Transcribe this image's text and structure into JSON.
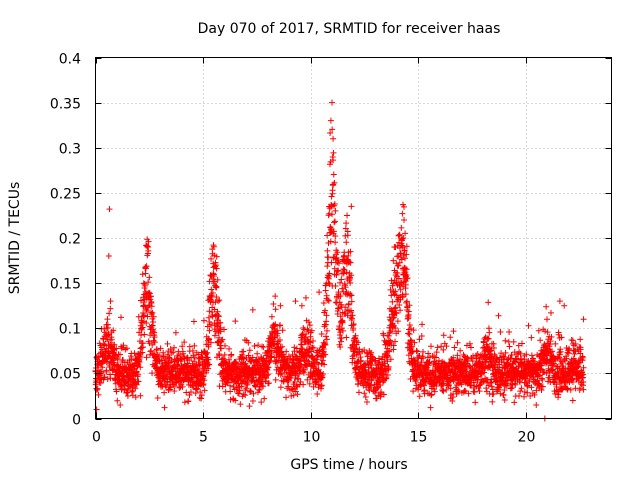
{
  "chart_data": {
    "type": "scatter",
    "title": "Day 070 of 2017, SRMTID for receiver haas",
    "xlabel": "GPS time / hours",
    "ylabel": "SRMTID / TECUs",
    "xlim": [
      0,
      24
    ],
    "ylim": [
      0,
      0.4
    ],
    "xticks": [
      0,
      5,
      10,
      15,
      20
    ],
    "xtick_labels": [
      "0",
      "5",
      "10",
      "15",
      "20"
    ],
    "yticks": [
      0,
      0.05,
      0.1,
      0.15,
      0.2,
      0.25,
      0.3,
      0.35,
      0.4
    ],
    "ytick_labels": [
      "0",
      "0.05",
      "0.1",
      "0.15",
      "0.2",
      "0.25",
      "0.3",
      "0.35",
      "0.4"
    ],
    "grid": true,
    "marker": "+",
    "series": [
      {
        "name": "SRMTID",
        "color": "#ff0000",
        "x_range": [
          0,
          22.7
        ],
        "n_points": 3600,
        "baseline_level": 0.05,
        "activity_episodes": [
          {
            "center_h": 0.6,
            "peak": 0.08
          },
          {
            "center_h": 2.4,
            "peak": 0.15
          },
          {
            "center_h": 5.5,
            "peak": 0.14
          },
          {
            "center_h": 8.3,
            "peak": 0.09
          },
          {
            "center_h": 9.8,
            "peak": 0.08
          },
          {
            "center_h": 11.0,
            "peak": 0.24
          },
          {
            "center_h": 11.7,
            "peak": 0.17
          },
          {
            "center_h": 13.9,
            "peak": 0.12
          },
          {
            "center_h": 14.3,
            "peak": 0.16
          },
          {
            "center_h": 18.2,
            "peak": 0.07
          },
          {
            "center_h": 21.0,
            "peak": 0.07
          },
          {
            "center_h": 22.3,
            "peak": 0.06
          }
        ],
        "outliers": [
          {
            "x": 0.65,
            "y": 0.232
          },
          {
            "x": 0.62,
            "y": 0.18
          },
          {
            "x": 0.7,
            "y": 0.13
          },
          {
            "x": 0.05,
            "y": 0.01
          },
          {
            "x": 2.35,
            "y": 0.192
          },
          {
            "x": 2.45,
            "y": 0.19
          },
          {
            "x": 11.0,
            "y": 0.35
          },
          {
            "x": 10.95,
            "y": 0.33
          },
          {
            "x": 11.05,
            "y": 0.31
          },
          {
            "x": 11.9,
            "y": 0.235
          },
          {
            "x": 11.7,
            "y": 0.225
          },
          {
            "x": 14.3,
            "y": 0.237
          },
          {
            "x": 14.35,
            "y": 0.22
          },
          {
            "x": 14.32,
            "y": 0.2
          },
          {
            "x": 13.9,
            "y": 0.19
          },
          {
            "x": 13.85,
            "y": 0.175
          },
          {
            "x": 14.4,
            "y": 0.16
          },
          {
            "x": 5.6,
            "y": 0.17
          },
          {
            "x": 5.5,
            "y": 0.15
          },
          {
            "x": 5.3,
            "y": 0.152
          },
          {
            "x": 5.7,
            "y": 0.13
          },
          {
            "x": 20.9,
            "y": 0.0
          },
          {
            "x": 21.6,
            "y": 0.13
          },
          {
            "x": 21.8,
            "y": 0.125
          },
          {
            "x": 21.0,
            "y": 0.11
          },
          {
            "x": 8.6,
            "y": 0.125
          },
          {
            "x": 9.3,
            "y": 0.13
          },
          {
            "x": 9.6,
            "y": 0.125
          },
          {
            "x": 10.4,
            "y": 0.14
          },
          {
            "x": 16.5,
            "y": 0.09
          },
          {
            "x": 18.3,
            "y": 0.1
          },
          {
            "x": 22.7,
            "y": 0.11
          },
          {
            "x": 20.5,
            "y": 0.015
          },
          {
            "x": 22.2,
            "y": 0.02
          },
          {
            "x": 1.15,
            "y": 0.015
          },
          {
            "x": 6.5,
            "y": 0.02
          }
        ]
      }
    ]
  }
}
